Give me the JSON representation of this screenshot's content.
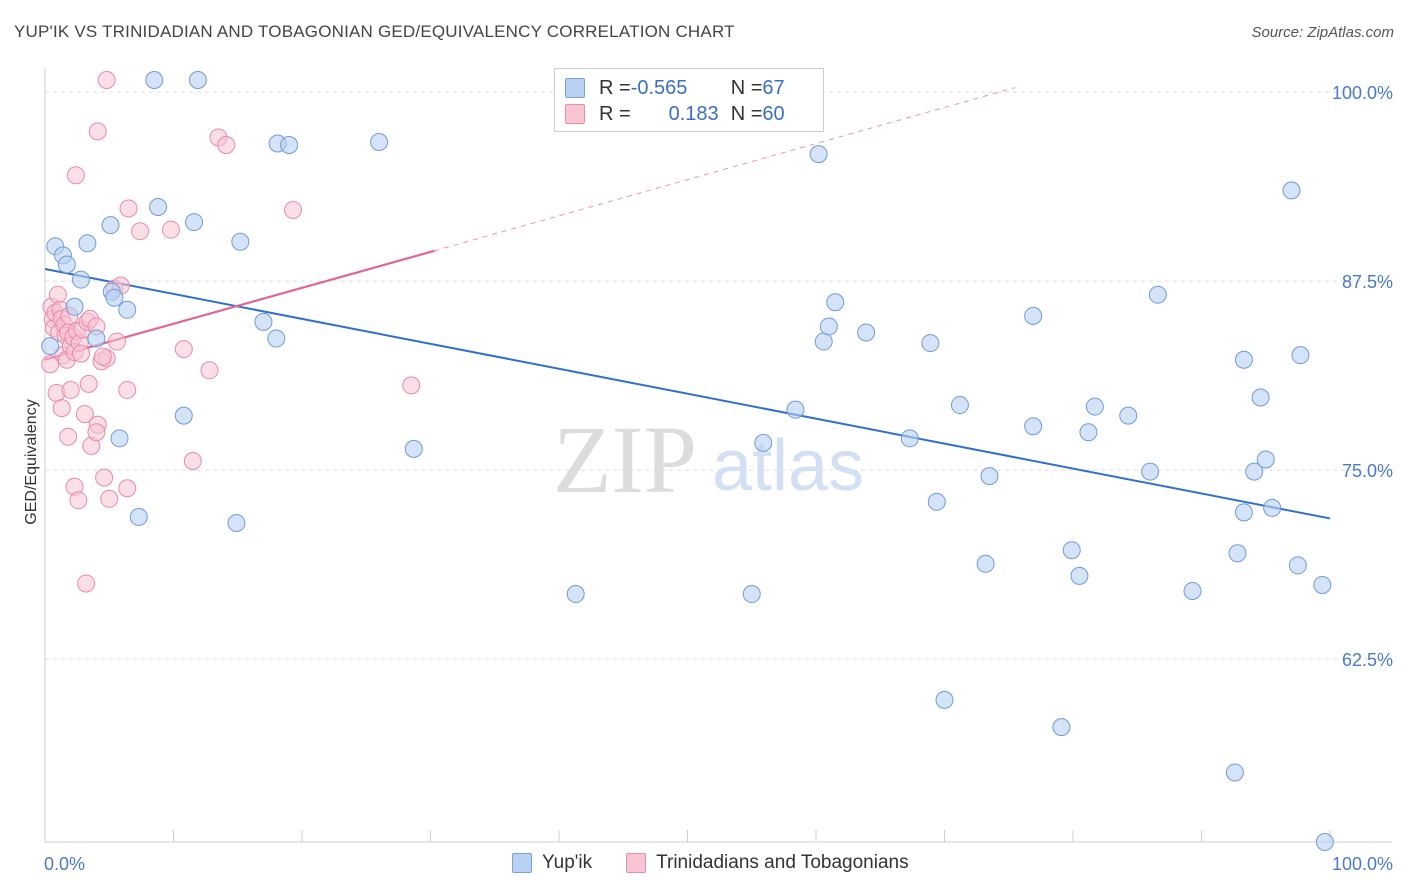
{
  "header": {
    "title": "YUP'IK VS TRINIDADIAN AND TOBAGONIAN GED/EQUIVALENCY CORRELATION CHART",
    "source": "Source: ZipAtlas.com"
  },
  "watermark": {
    "zip": "ZIP",
    "atlas": "atlas"
  },
  "legend": {
    "blue": {
      "r_label": "R = ",
      "r_value": "-0.565",
      "n_label": "N = ",
      "n_value": "67"
    },
    "pink": {
      "r_label": "R = ",
      "r_value": "0.183",
      "n_label": "N = ",
      "n_value": "60"
    }
  },
  "colors": {
    "blue_fill": "#b8d0f2",
    "blue_stroke": "#6f9bd9",
    "blue_line": "#2f6fce",
    "pink_fill": "#f8c5d3",
    "pink_stroke": "#e98aa6",
    "pink_line": "#e3648e",
    "grid": "#dddddd",
    "tick_text": "#4a7bc8"
  },
  "chart_data": {
    "type": "scatter",
    "title": "YUP'IK VS TRINIDADIAN AND TOBAGONIAN GED/EQUIVALENCY CORRELATION CHART",
    "xlabel": "",
    "ylabel": "GED/Equivalency",
    "xlim": [
      0,
      100
    ],
    "ylim": [
      50.4,
      100.8
    ],
    "x_tick_labels": [
      "0.0%",
      "100.0%"
    ],
    "y_ticks": [
      62.5,
      75.0,
      87.5,
      100.0
    ],
    "y_tick_labels": [
      "62.5%",
      "75.0%",
      "87.5%",
      "100.0%"
    ],
    "grid": true,
    "series": [
      {
        "name": "Yup'ik",
        "r": -0.565,
        "n": 67,
        "trend": {
          "x": [
            0,
            100
          ],
          "y": [
            88.3,
            71.8
          ],
          "style": "solid"
        },
        "points": [
          [
            0.8,
            89.8
          ],
          [
            1.4,
            89.2
          ],
          [
            1.7,
            88.6
          ],
          [
            3.3,
            90.0
          ],
          [
            2.8,
            87.6
          ],
          [
            2.3,
            85.8
          ],
          [
            4.0,
            83.7
          ],
          [
            5.2,
            86.8
          ],
          [
            5.4,
            86.4
          ],
          [
            6.4,
            85.6
          ],
          [
            5.1,
            91.2
          ],
          [
            8.5,
            100.8
          ],
          [
            11.9,
            100.8
          ],
          [
            8.8,
            92.4
          ],
          [
            11.6,
            91.4
          ],
          [
            15.2,
            90.1
          ],
          [
            18.1,
            96.6
          ],
          [
            19.0,
            96.5
          ],
          [
            26.0,
            96.7
          ],
          [
            17.0,
            84.8
          ],
          [
            18.0,
            83.7
          ],
          [
            10.8,
            78.6
          ],
          [
            5.8,
            77.1
          ],
          [
            7.3,
            71.9
          ],
          [
            14.9,
            71.5
          ],
          [
            28.7,
            76.4
          ],
          [
            41.3,
            66.8
          ],
          [
            55.0,
            66.8
          ],
          [
            55.9,
            76.8
          ],
          [
            58.4,
            79.0
          ],
          [
            60.2,
            95.9
          ],
          [
            60.6,
            83.5
          ],
          [
            61.0,
            84.5
          ],
          [
            61.5,
            86.1
          ],
          [
            63.9,
            84.1
          ],
          [
            67.3,
            77.1
          ],
          [
            68.9,
            83.4
          ],
          [
            69.4,
            72.9
          ],
          [
            70.0,
            59.8
          ],
          [
            71.2,
            79.3
          ],
          [
            73.2,
            68.8
          ],
          [
            73.5,
            74.6
          ],
          [
            76.9,
            85.2
          ],
          [
            76.9,
            77.9
          ],
          [
            79.1,
            58.0
          ],
          [
            79.9,
            69.7
          ],
          [
            80.5,
            68.0
          ],
          [
            81.2,
            77.5
          ],
          [
            81.7,
            79.2
          ],
          [
            84.3,
            78.6
          ],
          [
            86.0,
            74.9
          ],
          [
            86.6,
            86.6
          ],
          [
            89.3,
            67.0
          ],
          [
            93.3,
            82.3
          ],
          [
            93.3,
            72.2
          ],
          [
            92.8,
            69.5
          ],
          [
            92.6,
            55.0
          ],
          [
            94.6,
            79.8
          ],
          [
            94.1,
            74.9
          ],
          [
            95.0,
            75.7
          ],
          [
            95.5,
            72.5
          ],
          [
            97.0,
            93.5
          ],
          [
            97.5,
            68.7
          ],
          [
            97.7,
            82.6
          ],
          [
            99.4,
            67.4
          ],
          [
            99.6,
            50.4
          ],
          [
            0.4,
            83.2
          ]
        ]
      },
      {
        "name": "Trinidadians and Tobagonians",
        "r": 0.183,
        "n": 60,
        "trend": {
          "x": [
            0,
            30.3
          ],
          "y": [
            82.3,
            89.5
          ],
          "style": "solid",
          "extended": {
            "x": [
              30.3,
              75.5
            ],
            "y": [
              89.5,
              100.3
            ],
            "style": "dashed"
          }
        },
        "points": [
          [
            0.5,
            85.8
          ],
          [
            0.6,
            85.0
          ],
          [
            0.7,
            84.4
          ],
          [
            0.8,
            85.4
          ],
          [
            1.0,
            86.6
          ],
          [
            1.1,
            84.1
          ],
          [
            1.2,
            85.6
          ],
          [
            1.3,
            85.0
          ],
          [
            1.4,
            82.6
          ],
          [
            1.5,
            84.6
          ],
          [
            1.6,
            83.9
          ],
          [
            1.7,
            82.3
          ],
          [
            1.8,
            84.1
          ],
          [
            1.9,
            85.2
          ],
          [
            2.0,
            83.2
          ],
          [
            2.2,
            83.8
          ],
          [
            2.3,
            82.8
          ],
          [
            2.5,
            84.2
          ],
          [
            2.7,
            83.4
          ],
          [
            2.9,
            84.3
          ],
          [
            3.3,
            84.8
          ],
          [
            3.5,
            85.0
          ],
          [
            4.0,
            84.5
          ],
          [
            4.4,
            82.2
          ],
          [
            4.8,
            82.4
          ],
          [
            5.6,
            83.5
          ],
          [
            0.4,
            82.0
          ],
          [
            0.9,
            80.1
          ],
          [
            1.3,
            79.1
          ],
          [
            2.0,
            80.3
          ],
          [
            3.1,
            78.7
          ],
          [
            3.4,
            80.7
          ],
          [
            1.8,
            77.2
          ],
          [
            3.6,
            76.6
          ],
          [
            4.1,
            78.0
          ],
          [
            4.0,
            77.5
          ],
          [
            2.3,
            73.9
          ],
          [
            2.6,
            73.0
          ],
          [
            4.6,
            74.5
          ],
          [
            5.0,
            73.1
          ],
          [
            6.4,
            73.8
          ],
          [
            6.4,
            80.3
          ],
          [
            5.4,
            87.0
          ],
          [
            5.9,
            87.2
          ],
          [
            2.4,
            94.5
          ],
          [
            3.2,
            67.5
          ],
          [
            4.1,
            97.4
          ],
          [
            4.8,
            100.8
          ],
          [
            6.5,
            92.3
          ],
          [
            7.4,
            90.8
          ],
          [
            9.8,
            90.9
          ],
          [
            13.5,
            97.0
          ],
          [
            14.1,
            96.5
          ],
          [
            19.3,
            92.2
          ],
          [
            10.8,
            83.0
          ],
          [
            11.5,
            75.6
          ],
          [
            12.8,
            81.6
          ],
          [
            28.5,
            80.6
          ],
          [
            4.5,
            82.5
          ],
          [
            2.8,
            82.7
          ]
        ]
      }
    ]
  }
}
